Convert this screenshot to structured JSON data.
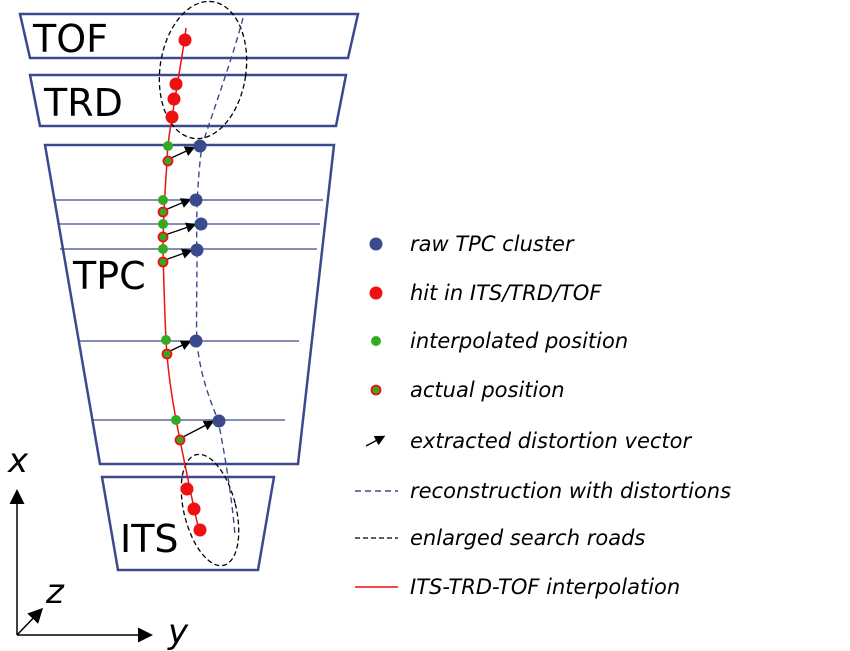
{
  "detectors": {
    "tof": "TOF",
    "trd": "TRD",
    "tpc": "TPC",
    "its": "ITS"
  },
  "axes": {
    "x": "x",
    "y": "y",
    "z": "z"
  },
  "legend": [
    {
      "id": "raw-cluster",
      "label": "raw TPC cluster"
    },
    {
      "id": "hit",
      "label": "hit in ITS/TRD/TOF"
    },
    {
      "id": "interpolated",
      "label": "interpolated position"
    },
    {
      "id": "actual",
      "label": "actual position"
    },
    {
      "id": "distortion-vector",
      "label": "extracted distortion vector"
    },
    {
      "id": "reconstruction",
      "label": "reconstruction with distortions"
    },
    {
      "id": "search-roads",
      "label": "enlarged search roads"
    },
    {
      "id": "interpolation",
      "label": "ITS-TRD-TOF interpolation"
    }
  ],
  "colors": {
    "detector": "#3b4a8c",
    "raw_cluster": "#3b4a8c",
    "hit": "#ee1111",
    "interpolated": "#33aa22",
    "interpolation_line": "#ee1111",
    "reconstruction_line": "#3b4a8c",
    "search_roads": "#000000"
  }
}
